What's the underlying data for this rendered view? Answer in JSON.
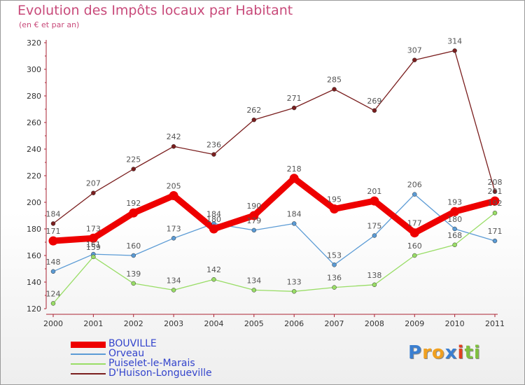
{
  "header": {
    "title": "Evolution des Impôts locaux par Habitant",
    "subtitle": "(en € et par an)"
  },
  "colors": {
    "title": "#c84a7a",
    "axis": "#aa2233",
    "grid": "#dddddd",
    "label": "#555555"
  },
  "logo": {
    "letters": [
      "P",
      "r",
      "o",
      "x",
      "i",
      "t",
      "i"
    ],
    "colors": [
      "#3b7fd0",
      "#f0a020",
      "#f0a020",
      "#3b7fd0",
      "#e04020",
      "#7fbf3f",
      "#7fbf3f"
    ]
  },
  "chart_data": {
    "type": "line",
    "x": [
      "2000",
      "2001",
      "2002",
      "2003",
      "2004",
      "2005",
      "2006",
      "2007",
      "2008",
      "2009",
      "2010",
      "2011"
    ],
    "ylim": [
      120,
      320
    ],
    "yticks": [
      120,
      140,
      160,
      180,
      200,
      220,
      240,
      260,
      280,
      300,
      320
    ],
    "grid": false,
    "legend_placement": "bottom-left",
    "series": [
      {
        "name": "BOUVILLE",
        "color": "#ee0000",
        "label_color": "#3344cc",
        "values": [
          171,
          173,
          192,
          205,
          180,
          190,
          218,
          195,
          201,
          177,
          193,
          201
        ],
        "emphasis": true
      },
      {
        "name": "Orveau",
        "color": "#5b9bd5",
        "label_color": "#3344cc",
        "values": [
          148,
          161,
          160,
          173,
          184,
          179,
          184,
          153,
          175,
          206,
          180,
          171
        ],
        "emphasis": false
      },
      {
        "name": "Puiselet-le-Marais",
        "color": "#99dd66",
        "label_color": "#3344cc",
        "values": [
          124,
          159,
          139,
          134,
          142,
          134,
          133,
          136,
          138,
          160,
          168,
          192
        ],
        "emphasis": false
      },
      {
        "name": "D'Huison-Longueville",
        "color": "#7a1e1e",
        "label_color": "#3344cc",
        "values": [
          184,
          207,
          225,
          242,
          236,
          262,
          271,
          285,
          269,
          307,
          314,
          208
        ],
        "emphasis": false
      }
    ]
  }
}
